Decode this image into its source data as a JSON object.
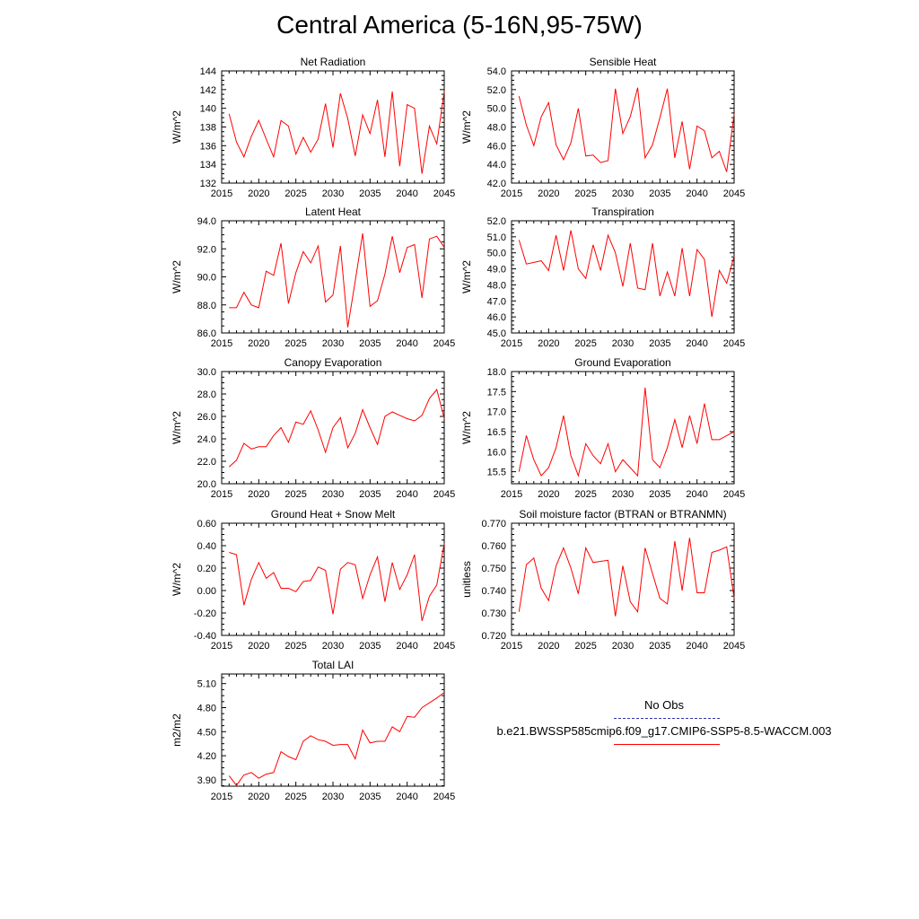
{
  "figure": {
    "title": "Central America (5-16N,95-75W)"
  },
  "legend": {
    "entries": [
      {
        "label": "No Obs",
        "color": "#3333aa",
        "style": "dashed"
      },
      {
        "label": "b.e21.BWSSP585cmip6.f09_g17.CMIP6-SSP5-8.5-WACCM.003",
        "color": "#ff0000",
        "style": "solid"
      }
    ]
  },
  "chart_data": [
    {
      "type": "line",
      "title": "Net Radiation",
      "ylabel": "W/m^2",
      "xlim": [
        2015,
        2045
      ],
      "ylim": [
        132,
        144
      ],
      "xticks": [
        "2015",
        "2020",
        "2025",
        "2030",
        "2035",
        "2040",
        "2045"
      ],
      "yticks": [
        "132",
        "134",
        "136",
        "138",
        "140",
        "142",
        "144"
      ],
      "series": [
        {
          "color": "#ff0000",
          "x": [
            2016,
            2017,
            2018,
            2019,
            2020,
            2021,
            2022,
            2023,
            2024,
            2025,
            2026,
            2027,
            2028,
            2029,
            2030,
            2031,
            2032,
            2033,
            2034,
            2035,
            2036,
            2037,
            2038,
            2039,
            2040,
            2041,
            2042,
            2043,
            2044,
            2045
          ],
          "values": [
            139.4,
            136.4,
            134.8,
            137.0,
            138.7,
            136.7,
            134.8,
            138.7,
            138.1,
            135.1,
            136.9,
            135.3,
            136.7,
            140.5,
            135.8,
            141.6,
            138.9,
            134.9,
            139.3,
            137.3,
            140.9,
            134.8,
            141.8,
            133.8,
            140.4,
            140.0,
            133.0,
            138.1,
            136.2,
            141.8
          ]
        }
      ]
    },
    {
      "type": "line",
      "title": "Sensible Heat",
      "ylabel": "W/m^2",
      "xlim": [
        2015,
        2045
      ],
      "ylim": [
        42,
        54
      ],
      "xticks": [
        "2015",
        "2020",
        "2025",
        "2030",
        "2035",
        "2040",
        "2045"
      ],
      "yticks": [
        "42.0",
        "44.0",
        "46.0",
        "48.0",
        "50.0",
        "52.0",
        "54.0"
      ],
      "series": [
        {
          "color": "#ff0000",
          "x": [
            2016,
            2017,
            2018,
            2019,
            2020,
            2021,
            2022,
            2023,
            2024,
            2025,
            2026,
            2027,
            2028,
            2029,
            2030,
            2031,
            2032,
            2033,
            2034,
            2035,
            2036,
            2037,
            2038,
            2039,
            2040,
            2041,
            2042,
            2043,
            2044,
            2045
          ],
          "values": [
            51.3,
            48.2,
            46.0,
            49.1,
            50.6,
            46.1,
            44.5,
            46.3,
            50.0,
            44.9,
            45.0,
            44.2,
            44.4,
            52.1,
            47.3,
            49.1,
            52.2,
            44.7,
            46.1,
            49.0,
            52.1,
            44.7,
            48.6,
            43.5,
            48.1,
            47.6,
            44.7,
            45.4,
            43.2,
            49.4
          ]
        }
      ]
    },
    {
      "type": "line",
      "title": "Latent Heat",
      "ylabel": "W/m^2",
      "xlim": [
        2015,
        2045
      ],
      "ylim": [
        86,
        94
      ],
      "xticks": [
        "2015",
        "2020",
        "2025",
        "2030",
        "2035",
        "2040",
        "2045"
      ],
      "yticks": [
        "86.0",
        "88.0",
        "90.0",
        "92.0",
        "94.0"
      ],
      "series": [
        {
          "color": "#ff0000",
          "x": [
            2016,
            2017,
            2018,
            2019,
            2020,
            2021,
            2022,
            2023,
            2024,
            2025,
            2026,
            2027,
            2028,
            2029,
            2030,
            2031,
            2032,
            2033,
            2034,
            2035,
            2036,
            2037,
            2038,
            2039,
            2040,
            2041,
            2042,
            2043,
            2044,
            2045
          ],
          "values": [
            87.8,
            87.8,
            88.9,
            88.0,
            87.8,
            90.4,
            90.1,
            92.4,
            88.1,
            90.3,
            91.8,
            91.0,
            92.2,
            88.2,
            88.7,
            92.2,
            86.4,
            89.7,
            93.1,
            87.9,
            88.3,
            90.2,
            92.9,
            90.3,
            92.1,
            92.3,
            88.5,
            92.7,
            92.9,
            92.1
          ]
        }
      ]
    },
    {
      "type": "line",
      "title": "Transpiration",
      "ylabel": "W/m^2",
      "xlim": [
        2015,
        2045
      ],
      "ylim": [
        45,
        52
      ],
      "xticks": [
        "2015",
        "2020",
        "2025",
        "2030",
        "2035",
        "2040",
        "2045"
      ],
      "yticks": [
        "45.0",
        "46.0",
        "47.0",
        "48.0",
        "49.0",
        "50.0",
        "51.0",
        "52.0"
      ],
      "series": [
        {
          "color": "#ff0000",
          "x": [
            2016,
            2017,
            2018,
            2019,
            2020,
            2021,
            2022,
            2023,
            2024,
            2025,
            2026,
            2027,
            2028,
            2029,
            2030,
            2031,
            2032,
            2033,
            2034,
            2035,
            2036,
            2037,
            2038,
            2039,
            2040,
            2041,
            2042,
            2043,
            2044,
            2045
          ],
          "values": [
            50.8,
            49.3,
            49.4,
            49.5,
            48.9,
            51.1,
            48.9,
            51.4,
            49.0,
            48.4,
            50.5,
            48.9,
            51.1,
            50.0,
            47.9,
            50.6,
            47.8,
            47.7,
            50.6,
            47.3,
            48.8,
            47.3,
            50.3,
            47.3,
            50.2,
            49.6,
            46.0,
            48.9,
            48.1,
            49.8
          ]
        }
      ]
    },
    {
      "type": "line",
      "title": "Canopy Evaporation",
      "ylabel": "W/m^2",
      "xlim": [
        2015,
        2045
      ],
      "ylim": [
        20,
        30
      ],
      "xticks": [
        "2015",
        "2020",
        "2025",
        "2030",
        "2035",
        "2040",
        "2045"
      ],
      "yticks": [
        "20.0",
        "22.0",
        "24.0",
        "26.0",
        "28.0",
        "30.0"
      ],
      "series": [
        {
          "color": "#ff0000",
          "x": [
            2016,
            2017,
            2018,
            2019,
            2020,
            2021,
            2022,
            2023,
            2024,
            2025,
            2026,
            2027,
            2028,
            2029,
            2030,
            2031,
            2032,
            2033,
            2034,
            2035,
            2036,
            2037,
            2038,
            2039,
            2040,
            2041,
            2042,
            2043,
            2044,
            2045
          ],
          "values": [
            21.5,
            22.1,
            23.6,
            23.1,
            23.3,
            23.3,
            24.3,
            25.0,
            23.7,
            25.5,
            25.3,
            26.5,
            24.8,
            22.8,
            25.0,
            25.9,
            23.2,
            24.5,
            26.6,
            25.0,
            23.5,
            26.0,
            26.4,
            26.1,
            25.8,
            25.6,
            26.1,
            27.6,
            28.4,
            25.8
          ]
        }
      ]
    },
    {
      "type": "line",
      "title": "Ground Evaporation",
      "ylabel": "W/m^2",
      "xlim": [
        2015,
        2045
      ],
      "ylim": [
        15.2,
        18
      ],
      "xticks": [
        "2015",
        "2020",
        "2025",
        "2030",
        "2035",
        "2040",
        "2045"
      ],
      "yticks": [
        "15.5",
        "16.0",
        "16.5",
        "17.0",
        "17.5",
        "18.0"
      ],
      "series": [
        {
          "color": "#ff0000",
          "x": [
            2016,
            2017,
            2018,
            2019,
            2020,
            2021,
            2022,
            2023,
            2024,
            2025,
            2026,
            2027,
            2028,
            2029,
            2030,
            2031,
            2032,
            2033,
            2034,
            2035,
            2036,
            2037,
            2038,
            2039,
            2040,
            2041,
            2042,
            2043,
            2044,
            2045
          ],
          "values": [
            15.5,
            16.4,
            15.8,
            15.4,
            15.6,
            16.1,
            16.9,
            15.9,
            15.4,
            16.2,
            15.9,
            15.7,
            16.2,
            15.5,
            15.8,
            15.6,
            15.4,
            17.6,
            15.8,
            15.6,
            16.1,
            16.8,
            16.1,
            16.9,
            16.2,
            17.2,
            16.3,
            16.3,
            16.4,
            16.5
          ]
        }
      ]
    },
    {
      "type": "line",
      "title": "Ground Heat + Snow Melt",
      "ylabel": "W/m^2",
      "xlim": [
        2015,
        2045
      ],
      "ylim": [
        -0.4,
        0.6
      ],
      "xticks": [
        "2015",
        "2020",
        "2025",
        "2030",
        "2035",
        "2040",
        "2045"
      ],
      "yticks": [
        "-0.40",
        "-0.20",
        "0.00",
        "0.20",
        "0.40",
        "0.60"
      ],
      "series": [
        {
          "color": "#ff0000",
          "x": [
            2016,
            2017,
            2018,
            2019,
            2020,
            2021,
            2022,
            2023,
            2024,
            2025,
            2026,
            2027,
            2028,
            2029,
            2030,
            2031,
            2032,
            2033,
            2034,
            2035,
            2036,
            2037,
            2038,
            2039,
            2040,
            2041,
            2042,
            2043,
            2044,
            2045
          ],
          "values": [
            0.34,
            0.32,
            -0.13,
            0.1,
            0.25,
            0.11,
            0.16,
            0.02,
            0.02,
            -0.01,
            0.08,
            0.09,
            0.21,
            0.18,
            -0.21,
            0.19,
            0.25,
            0.23,
            -0.07,
            0.14,
            0.3,
            -0.1,
            0.25,
            0.01,
            0.14,
            0.32,
            -0.27,
            -0.05,
            0.05,
            0.42
          ]
        }
      ]
    },
    {
      "type": "line",
      "title": "Soil moisture factor (BTRAN or BTRANMN)",
      "ylabel": "unitless",
      "xlim": [
        2015,
        2045
      ],
      "ylim": [
        0.72,
        0.77
      ],
      "xticks": [
        "2015",
        "2020",
        "2025",
        "2030",
        "2035",
        "2040",
        "2045"
      ],
      "yticks": [
        "0.720",
        "0.730",
        "0.740",
        "0.750",
        "0.760",
        "0.770"
      ],
      "series": [
        {
          "color": "#ff0000",
          "x": [
            2016,
            2017,
            2018,
            2019,
            2020,
            2021,
            2022,
            2023,
            2024,
            2025,
            2026,
            2027,
            2028,
            2029,
            2030,
            2031,
            2032,
            2033,
            2034,
            2035,
            2036,
            2037,
            2038,
            2039,
            2040,
            2041,
            2042,
            2043,
            2044,
            2045
          ],
          "values": [
            0.7305,
            0.7515,
            0.7545,
            0.741,
            0.7355,
            0.751,
            0.759,
            0.75,
            0.7385,
            0.759,
            0.7525,
            0.753,
            0.7535,
            0.7285,
            0.751,
            0.735,
            0.7305,
            0.759,
            0.7475,
            0.7365,
            0.734,
            0.762,
            0.74,
            0.7635,
            0.739,
            0.739,
            0.757,
            0.758,
            0.7595,
            0.7365
          ]
        }
      ]
    },
    {
      "type": "line",
      "title": "Total LAI",
      "ylabel": "m2/m2",
      "xlim": [
        2015,
        2045
      ],
      "ylim": [
        3.82,
        5.22
      ],
      "xticks": [
        "2015",
        "2020",
        "2025",
        "2030",
        "2035",
        "2040",
        "2045"
      ],
      "yticks": [
        "3.90",
        "4.20",
        "4.50",
        "4.80",
        "5.10"
      ],
      "series": [
        {
          "color": "#ff0000",
          "x": [
            2016,
            2017,
            2018,
            2019,
            2020,
            2021,
            2022,
            2023,
            2024,
            2025,
            2026,
            2027,
            2028,
            2029,
            2030,
            2031,
            2032,
            2033,
            2034,
            2035,
            2036,
            2037,
            2038,
            2039,
            2040,
            2041,
            2042,
            2043,
            2044,
            2045
          ],
          "values": [
            3.95,
            3.83,
            3.96,
            3.99,
            3.92,
            3.97,
            3.99,
            4.25,
            4.19,
            4.15,
            4.38,
            4.45,
            4.4,
            4.38,
            4.33,
            4.34,
            4.34,
            4.16,
            4.52,
            4.36,
            4.38,
            4.38,
            4.56,
            4.5,
            4.69,
            4.68,
            4.8,
            4.86,
            4.92,
            4.99
          ]
        }
      ]
    }
  ]
}
